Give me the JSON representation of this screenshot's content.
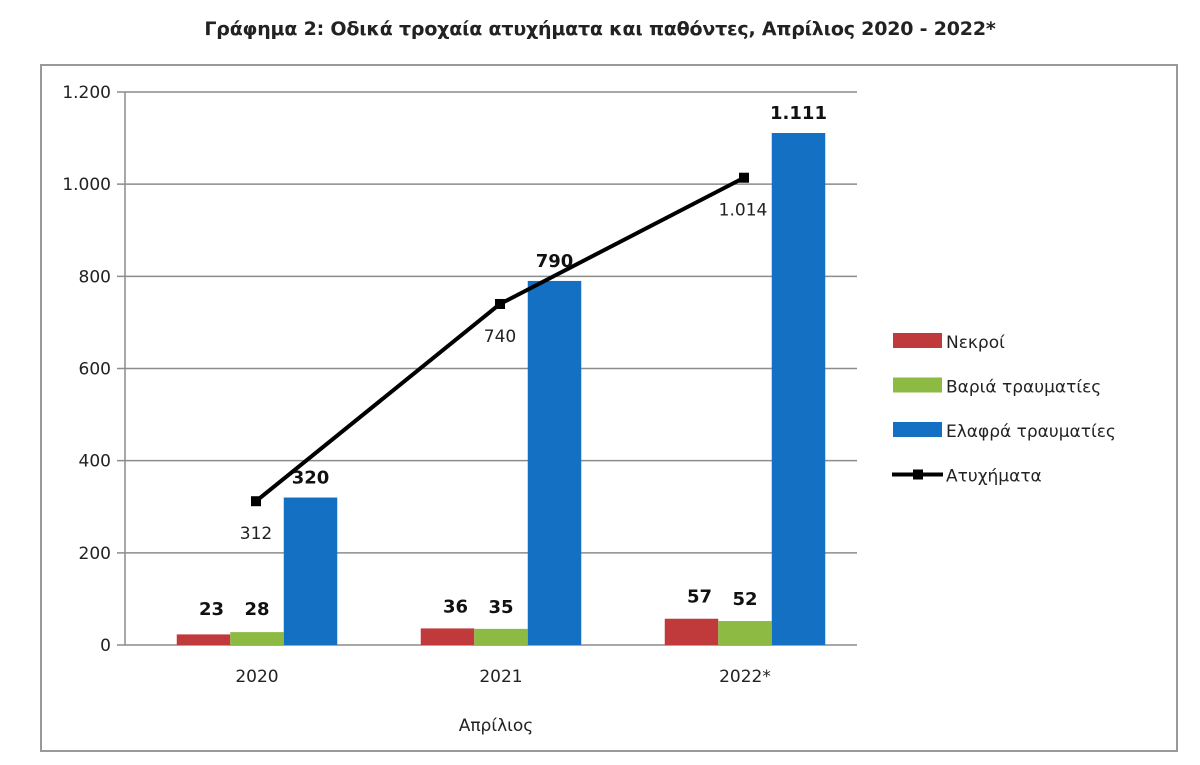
{
  "chart_data": {
    "type": "bar",
    "title": "Γράφημα 2: Οδικά τροχαία ατυχήματα και παθόντες, Απρίλιος 2020 - 2022*",
    "xlabel": "Απρίλιος",
    "ylabel": "",
    "ylim": [
      0,
      1200
    ],
    "yticks": [
      0,
      200,
      400,
      600,
      800,
      1000,
      1200
    ],
    "ytick_labels": [
      "0",
      "200",
      "400",
      "600",
      "800",
      "1.000",
      "1.200"
    ],
    "grid": true,
    "legend_position": "right",
    "categories": [
      "2020",
      "2021",
      "2022*"
    ],
    "series": [
      {
        "name": "Νεκροί",
        "kind": "bar",
        "color": "#c0393b",
        "values": [
          23,
          36,
          57
        ],
        "labels": [
          "23",
          "36",
          "57"
        ]
      },
      {
        "name": "Βαριά τραυματίες",
        "kind": "bar",
        "color": "#8dba43",
        "values": [
          28,
          35,
          52
        ],
        "labels": [
          "28",
          "35",
          "52"
        ]
      },
      {
        "name": "Ελαφρά τραυματίες",
        "kind": "bar",
        "color": "#1470c2",
        "values": [
          320,
          790,
          1111
        ],
        "labels": [
          "320",
          "790",
          "1.111"
        ]
      },
      {
        "name": "Ατυχήματα",
        "kind": "line",
        "color": "#000000",
        "values": [
          312,
          740,
          1014
        ],
        "labels": [
          "312",
          "740",
          "1.014"
        ]
      }
    ]
  }
}
